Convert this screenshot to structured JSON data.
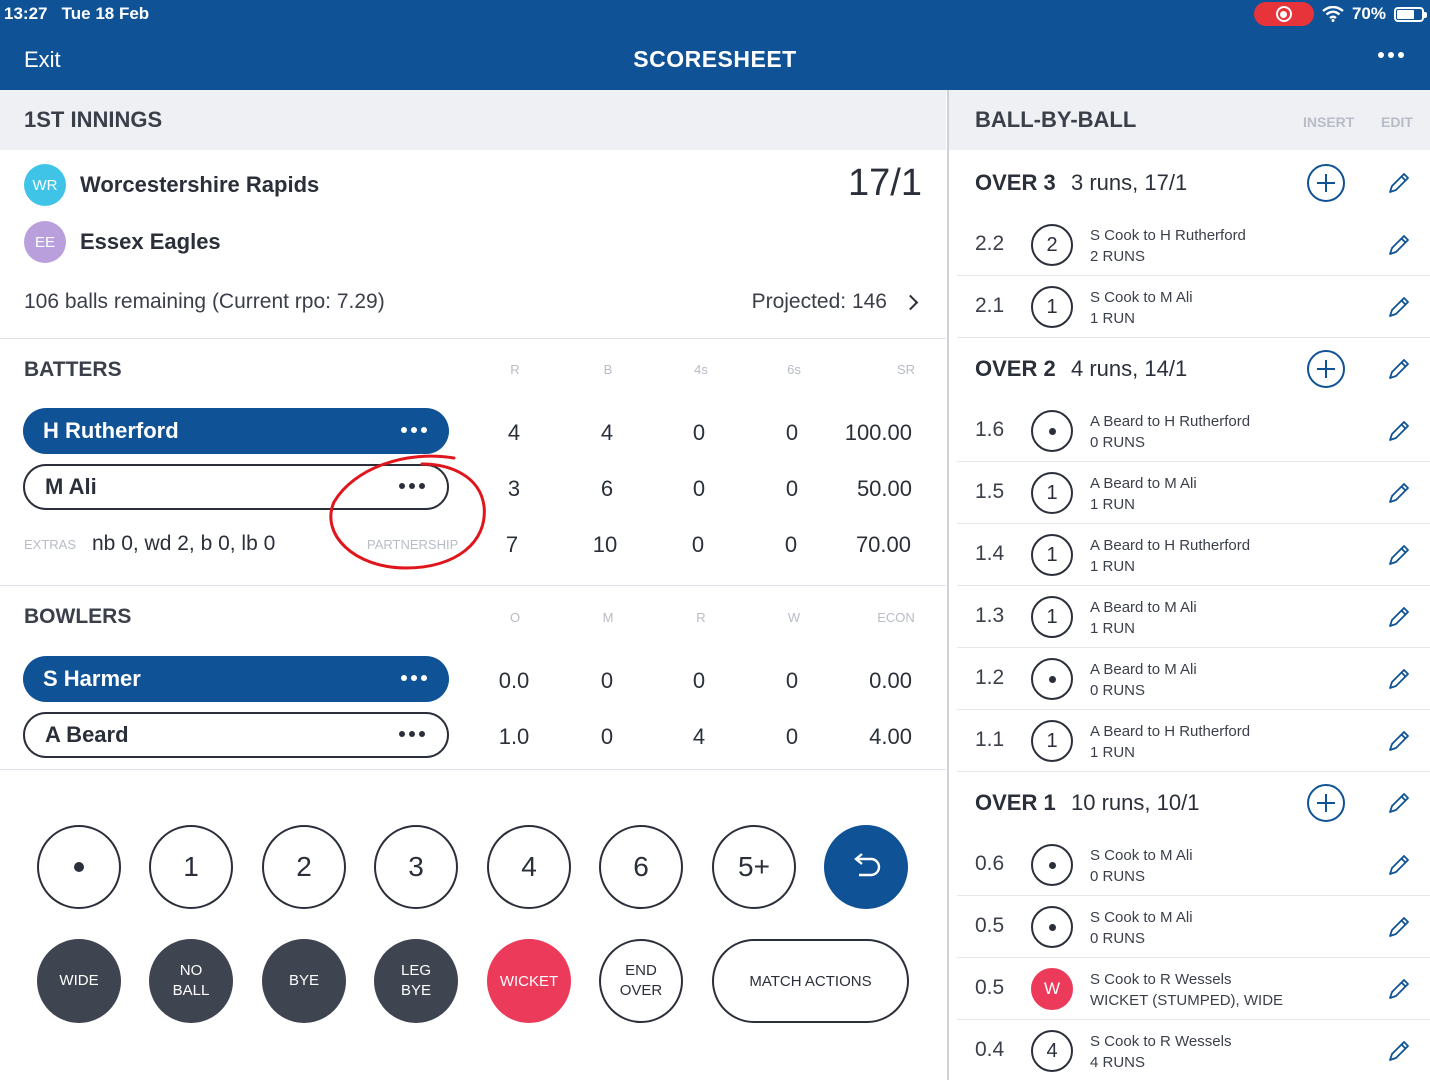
{
  "status": {
    "time": "13:27",
    "date": "Tue 18 Feb",
    "battery": "70%",
    "battery_level": 0.7
  },
  "nav": {
    "exit": "Exit",
    "title": "SCORESHEET"
  },
  "innings": {
    "title": "1ST INNINGS",
    "teams": [
      {
        "initials": "WR",
        "name": "Worcestershire Rapids",
        "color": "#3fc4e8"
      },
      {
        "initials": "EE",
        "name": "Essex Eagles",
        "color": "#b9a0dd"
      }
    ],
    "score": "17/1",
    "remaining": "106 balls remaining (Current rpo: 7.29)",
    "projected": "Projected: 146"
  },
  "batters": {
    "title": "BATTERS",
    "columns": [
      "R",
      "B",
      "4s",
      "6s",
      "SR"
    ],
    "rows": [
      {
        "name": "H Rutherford",
        "active": true,
        "values": [
          "4",
          "4",
          "0",
          "0",
          "100.00"
        ]
      },
      {
        "name": "M Ali",
        "active": false,
        "values": [
          "3",
          "6",
          "0",
          "0",
          "50.00"
        ]
      }
    ],
    "extras_label": "EXTRAS",
    "extras": "nb 0, wd 2, b 0, lb 0",
    "partnership_label": "PARTNERSHIP",
    "partnership": [
      "7",
      "10",
      "0",
      "0",
      "70.00"
    ]
  },
  "bowlers": {
    "title": "BOWLERS",
    "columns": [
      "O",
      "M",
      "R",
      "W",
      "ECON"
    ],
    "rows": [
      {
        "name": "S Harmer",
        "active": true,
        "values": [
          "0.0",
          "0",
          "0",
          "0",
          "0.00"
        ]
      },
      {
        "name": "A Beard",
        "active": false,
        "values": [
          "1.0",
          "0",
          "4",
          "0",
          "4.00"
        ]
      }
    ]
  },
  "scoring": {
    "runs": [
      "1",
      "2",
      "3",
      "4",
      "6",
      "5+"
    ],
    "wide": "WIDE",
    "no_ball": [
      "NO",
      "BALL"
    ],
    "bye": "BYE",
    "leg_bye": [
      "LEG",
      "BYE"
    ],
    "wicket": "WICKET",
    "end_over": [
      "END",
      "OVER"
    ],
    "match_actions": "MATCH ACTIONS"
  },
  "ball_by_ball": {
    "title": "BALL-BY-BALL",
    "insert": "INSERT",
    "edit": "EDIT",
    "rows": [
      {
        "type": "over",
        "name": "OVER 3",
        "summary": "3 runs, 17/1"
      },
      {
        "type": "ball",
        "no": "2.2",
        "result": "2",
        "line1": "S Cook to H Rutherford",
        "line2": "2 RUNS"
      },
      {
        "type": "ball",
        "no": "2.1",
        "result": "1",
        "line1": "S Cook to M Ali",
        "line2": "1 RUN"
      },
      {
        "type": "over",
        "name": "OVER 2",
        "summary": "4 runs, 14/1"
      },
      {
        "type": "ball",
        "no": "1.6",
        "result": "dot",
        "line1": "A Beard to H Rutherford",
        "line2": "0 RUNS"
      },
      {
        "type": "ball",
        "no": "1.5",
        "result": "1",
        "line1": "A Beard to M Ali",
        "line2": "1 RUN"
      },
      {
        "type": "ball",
        "no": "1.4",
        "result": "1",
        "line1": "A Beard to H Rutherford",
        "line2": "1 RUN"
      },
      {
        "type": "ball",
        "no": "1.3",
        "result": "1",
        "line1": "A Beard to M Ali",
        "line2": "1 RUN"
      },
      {
        "type": "ball",
        "no": "1.2",
        "result": "dot",
        "line1": "A Beard to M Ali",
        "line2": "0 RUNS"
      },
      {
        "type": "ball",
        "no": "1.1",
        "result": "1",
        "line1": "A Beard to H Rutherford",
        "line2": "1 RUN"
      },
      {
        "type": "over",
        "name": "OVER 1",
        "summary": "10 runs, 10/1"
      },
      {
        "type": "ball",
        "no": "0.6",
        "result": "dot",
        "line1": "S Cook to M Ali",
        "line2": "0 RUNS"
      },
      {
        "type": "ball",
        "no": "0.5",
        "result": "dot",
        "line1": "S Cook to M Ali",
        "line2": "0 RUNS"
      },
      {
        "type": "ball",
        "no": "0.5",
        "result": "W",
        "line1": "S Cook to R Wessels",
        "line2": "WICKET (STUMPED), WIDE"
      },
      {
        "type": "ball",
        "no": "0.4",
        "result": "4",
        "line1": "S Cook to R Wessels",
        "line2": "4 RUNS"
      }
    ]
  },
  "colors": {
    "primary": "#0f5296",
    "wicket": "#ec3a5a",
    "extras_button": "#3e4450",
    "record": "#e7343b"
  }
}
